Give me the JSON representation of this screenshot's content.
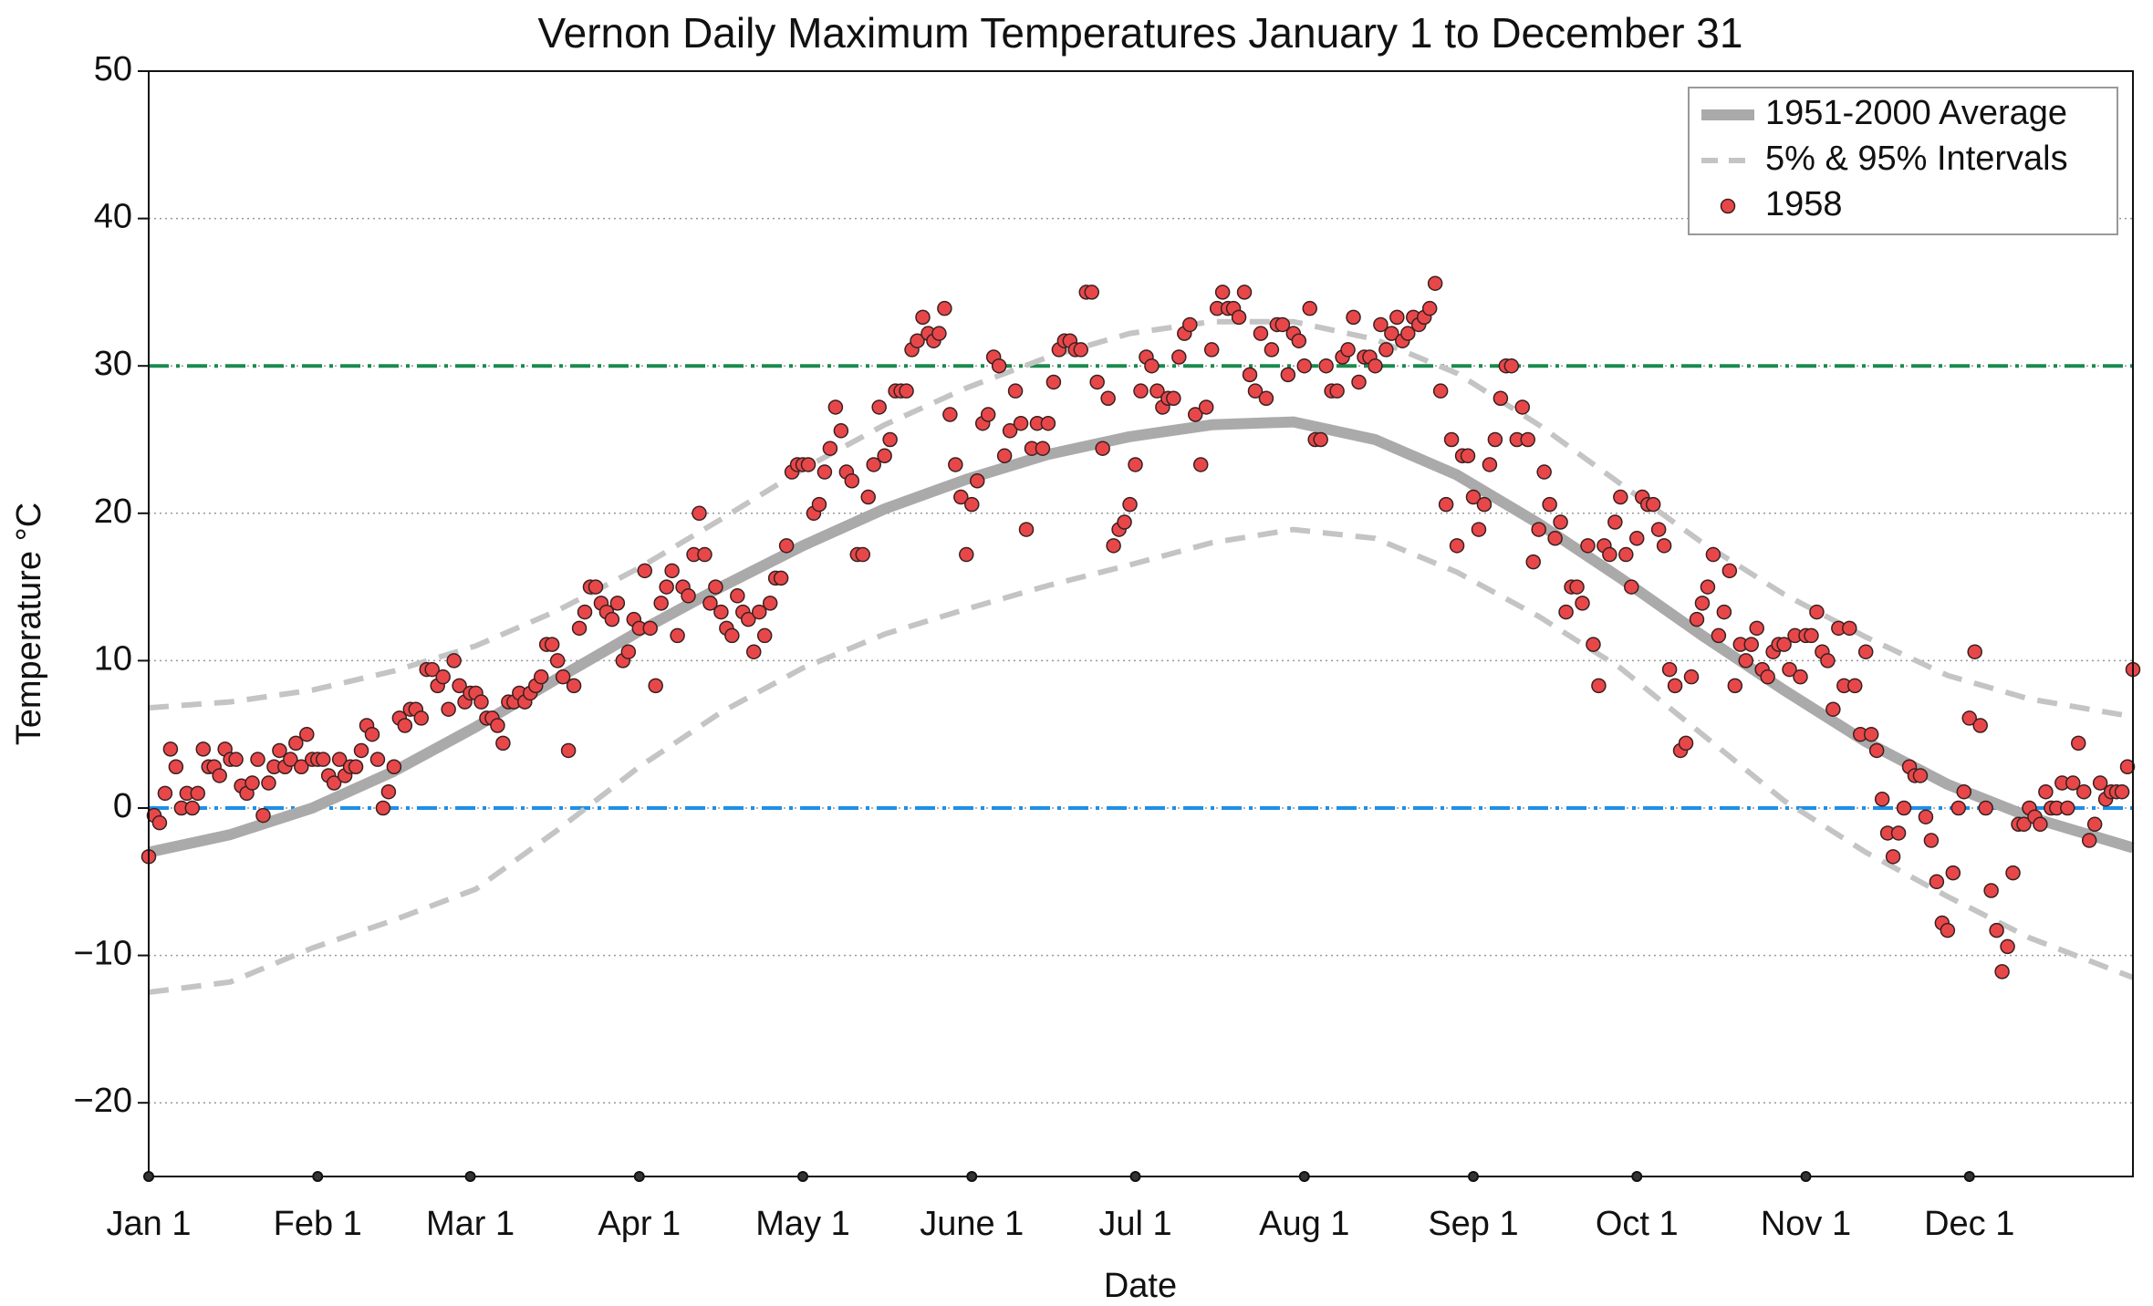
{
  "chart_data": {
    "type": "scatter",
    "title": "Vernon Daily Maximum Temperatures January 1 to December 31",
    "x_label": "Date",
    "y_label": "Temperature °C",
    "xlim": [
      0,
      364
    ],
    "ylim": [
      -25,
      50
    ],
    "xticks": [
      {
        "value": 0,
        "label": "Jan 1"
      },
      {
        "value": 31,
        "label": "Feb 1"
      },
      {
        "value": 59,
        "label": "Mar 1"
      },
      {
        "value": 90,
        "label": "Apr 1"
      },
      {
        "value": 120,
        "label": "May 1"
      },
      {
        "value": 151,
        "label": "June 1"
      },
      {
        "value": 181,
        "label": "Jul 1"
      },
      {
        "value": 212,
        "label": "Aug 1"
      },
      {
        "value": 243,
        "label": "Sep 1"
      },
      {
        "value": 273,
        "label": "Oct 1"
      },
      {
        "value": 304,
        "label": "Nov 1"
      },
      {
        "value": 334,
        "label": "Dec 1"
      }
    ],
    "yticks": [
      {
        "value": -20,
        "label": "−20"
      },
      {
        "value": -10,
        "label": "−10"
      },
      0,
      10,
      20,
      30,
      40,
      50
    ],
    "grid": true,
    "legend": "upper right",
    "reference_lines": [
      {
        "value": 30,
        "color": "#1a8a4f"
      },
      {
        "value": 0,
        "color": "#1f8fe5"
      }
    ],
    "series": [
      {
        "name": "1951-2000 Average",
        "type": "line",
        "color": "#aaaaaa",
        "x": [
          0,
          15,
          30,
          45,
          60,
          75,
          90,
          105,
          120,
          135,
          150,
          165,
          180,
          195,
          210,
          225,
          240,
          255,
          270,
          285,
          300,
          315,
          330,
          345,
          364
        ],
        "values": [
          -3.0,
          -1.8,
          0.0,
          2.5,
          5.5,
          8.8,
          12.0,
          15.0,
          17.8,
          20.3,
          22.3,
          24.0,
          25.2,
          26.0,
          26.2,
          25.0,
          22.6,
          19.3,
          15.6,
          11.7,
          8.0,
          4.5,
          1.6,
          -0.6,
          -2.7
        ]
      },
      {
        "name": "5% & 95% Intervals",
        "type": "band-lines",
        "color": "#c4c4c4",
        "x": [
          0,
          15,
          30,
          45,
          60,
          75,
          90,
          105,
          120,
          135,
          150,
          165,
          180,
          195,
          210,
          225,
          240,
          255,
          270,
          285,
          300,
          315,
          330,
          345,
          364
        ],
        "upper": [
          6.8,
          7.2,
          8.0,
          9.3,
          11.0,
          13.4,
          16.3,
          19.6,
          23.0,
          26.0,
          28.5,
          30.6,
          32.2,
          33.0,
          33.0,
          31.8,
          29.5,
          26.0,
          22.0,
          18.0,
          14.5,
          11.6,
          9.0,
          7.4,
          6.2
        ],
        "lower": [
          -12.5,
          -11.8,
          -9.5,
          -7.6,
          -5.5,
          -1.5,
          2.8,
          6.5,
          9.5,
          11.8,
          13.5,
          15.1,
          16.5,
          18.0,
          18.9,
          18.3,
          16.0,
          13.0,
          9.5,
          5.0,
          0.5,
          -3.0,
          -6.0,
          -8.8,
          -11.5
        ]
      },
      {
        "name": "1958",
        "type": "scatter",
        "color": "#e8474a",
        "x": [
          0,
          1,
          2,
          3,
          4,
          5,
          6,
          7,
          8,
          9,
          10,
          11,
          12,
          13,
          14,
          15,
          16,
          17,
          18,
          19,
          20,
          21,
          22,
          23,
          24,
          25,
          26,
          27,
          28,
          29,
          30,
          31,
          32,
          33,
          34,
          35,
          36,
          37,
          38,
          39,
          40,
          41,
          42,
          43,
          44,
          45,
          46,
          47,
          48,
          49,
          50,
          51,
          52,
          53,
          54,
          55,
          56,
          57,
          58,
          59,
          60,
          61,
          62,
          63,
          64,
          65,
          66,
          67,
          68,
          69,
          70,
          71,
          72,
          73,
          74,
          75,
          76,
          77,
          78,
          79,
          80,
          81,
          82,
          83,
          84,
          85,
          86,
          87,
          88,
          89,
          90,
          91,
          92,
          93,
          94,
          95,
          96,
          97,
          98,
          99,
          100,
          101,
          102,
          103,
          104,
          105,
          106,
          107,
          108,
          109,
          110,
          111,
          112,
          113,
          114,
          115,
          116,
          117,
          118,
          119,
          120,
          121,
          122,
          123,
          124,
          125,
          126,
          127,
          128,
          129,
          130,
          131,
          132,
          133,
          134,
          135,
          136,
          137,
          138,
          139,
          140,
          141,
          142,
          143,
          144,
          145,
          146,
          147,
          148,
          149,
          150,
          151,
          152,
          153,
          154,
          155,
          156,
          157,
          158,
          159,
          160,
          161,
          162,
          163,
          164,
          165,
          166,
          167,
          168,
          169,
          170,
          171,
          172,
          173,
          174,
          175,
          176,
          177,
          178,
          179,
          180,
          181,
          182,
          183,
          184,
          185,
          186,
          187,
          188,
          189,
          190,
          191,
          192,
          193,
          194,
          195,
          196,
          197,
          198,
          199,
          200,
          201,
          202,
          203,
          204,
          205,
          206,
          207,
          208,
          209,
          210,
          211,
          212,
          213,
          214,
          215,
          216,
          217,
          218,
          219,
          220,
          221,
          222,
          223,
          224,
          225,
          226,
          227,
          228,
          229,
          230,
          231,
          232,
          233,
          234,
          235,
          236,
          237,
          238,
          239,
          240,
          241,
          242,
          243,
          244,
          245,
          246,
          247,
          248,
          249,
          250,
          251,
          252,
          253,
          254,
          255,
          256,
          257,
          258,
          259,
          260,
          261,
          262,
          263,
          264,
          265,
          266,
          267,
          268,
          269,
          270,
          271,
          272,
          273,
          274,
          275,
          276,
          277,
          278,
          279,
          280,
          281,
          282,
          283,
          284,
          285,
          286,
          287,
          288,
          289,
          290,
          291,
          292,
          293,
          294,
          295,
          296,
          297,
          298,
          299,
          300,
          301,
          302,
          303,
          304,
          305,
          306,
          307,
          308,
          309,
          310,
          311,
          312,
          313,
          314,
          315,
          316,
          317,
          318,
          319,
          320,
          321,
          322,
          323,
          324,
          325,
          326,
          327,
          328,
          329,
          330,
          331,
          332,
          333,
          334,
          335,
          336,
          337,
          338,
          339,
          340,
          341,
          342,
          343,
          344,
          345,
          346,
          347,
          348,
          349,
          350,
          351,
          352,
          353,
          354,
          355,
          356,
          357,
          358,
          359,
          360,
          361,
          362,
          363,
          364
        ],
        "values": [
          -3.3,
          -0.5,
          -1,
          1,
          4,
          2.8,
          0,
          1,
          0,
          1,
          4,
          2.8,
          2.8,
          2.2,
          4,
          3.3,
          3.3,
          1.5,
          1,
          1.7,
          3.3,
          -0.5,
          1.7,
          2.8,
          3.9,
          2.8,
          3.3,
          4.4,
          2.8,
          5,
          3.3,
          3.3,
          3.3,
          2.2,
          1.7,
          3.3,
          2.2,
          2.8,
          2.8,
          3.9,
          5.6,
          5,
          3.3,
          0,
          1.1,
          2.8,
          6.1,
          5.6,
          6.7,
          6.7,
          6.1,
          9.4,
          9.4,
          8.3,
          8.9,
          6.7,
          10,
          8.3,
          7.2,
          7.8,
          7.8,
          7.2,
          6.1,
          6.1,
          5.6,
          4.4,
          7.2,
          7.2,
          7.8,
          7.2,
          7.8,
          8.3,
          8.9,
          11.1,
          11.1,
          10,
          8.9,
          3.9,
          8.3,
          12.2,
          13.3,
          15,
          15,
          13.9,
          13.3,
          12.8,
          13.9,
          10,
          10.6,
          12.8,
          12.2,
          16.1,
          12.2,
          8.3,
          13.9,
          15,
          16.1,
          11.7,
          15,
          14.4,
          17.2,
          20,
          17.2,
          13.9,
          15,
          13.3,
          12.2,
          11.7,
          14.4,
          13.3,
          12.8,
          10.6,
          13.3,
          11.7,
          13.9,
          15.6,
          15.6,
          17.8,
          22.8,
          23.3,
          23.3,
          23.3,
          20,
          20.6,
          22.8,
          24.4,
          27.2,
          25.6,
          22.8,
          22.2,
          17.2,
          17.2,
          21.1,
          23.3,
          27.2,
          23.9,
          25,
          28.3,
          28.3,
          28.3,
          31.1,
          31.7,
          33.3,
          32.2,
          31.7,
          32.2,
          33.9,
          26.7,
          23.3,
          21.1,
          17.2,
          20.6,
          22.2,
          26.1,
          26.7,
          30.6,
          30,
          23.9,
          25.6,
          28.3,
          26.1,
          18.9,
          24.4,
          26.1,
          24.4,
          26.1,
          28.9,
          31.1,
          31.7,
          31.7,
          31.1,
          31.1,
          35,
          35,
          28.9,
          24.4,
          27.8,
          17.8,
          18.9,
          19.4,
          20.6,
          23.3,
          28.3,
          30.6,
          30,
          28.3,
          27.2,
          27.8,
          27.8,
          30.6,
          32.2,
          32.8,
          26.7,
          23.3,
          27.2,
          31.1,
          33.9,
          35,
          33.9,
          33.9,
          33.3,
          35,
          29.4,
          28.3,
          32.2,
          27.8,
          31.1,
          32.8,
          32.8,
          29.4,
          32.2,
          31.7,
          30,
          33.9,
          25,
          25,
          30,
          28.3,
          28.3,
          30.6,
          31.1,
          33.3,
          28.9,
          30.6,
          30.6,
          30,
          32.8,
          31.1,
          32.2,
          33.3,
          31.7,
          32.2,
          33.3,
          32.8,
          33.3,
          33.9,
          35.6,
          28.3,
          20.6,
          25,
          17.8,
          23.9,
          23.9,
          21.1,
          18.9,
          20.6,
          23.3,
          25,
          27.8,
          30,
          30,
          25,
          27.2,
          25,
          16.7,
          18.9,
          22.8,
          20.6,
          18.3,
          19.4,
          13.3,
          15,
          15,
          13.9,
          17.8,
          11.1,
          8.3,
          17.8,
          17.2,
          19.4,
          21.1,
          17.2,
          15,
          18.3,
          21.1,
          20.6,
          20.6,
          18.9,
          17.8,
          9.4,
          8.3,
          3.9,
          4.4,
          8.9,
          12.8,
          13.9,
          15,
          17.2,
          11.7,
          13.3,
          16.1,
          8.3,
          11.1,
          10,
          11.1,
          12.2,
          9.4,
          8.9,
          10.6,
          11.1,
          11.1,
          9.4,
          11.7,
          8.9,
          11.7,
          11.7,
          13.3,
          10.6,
          10,
          6.7,
          12.2,
          8.3,
          12.2,
          8.3,
          5,
          10.6,
          5,
          3.9,
          0.6,
          -1.7,
          -3.3,
          -1.7,
          0,
          2.8,
          2.2,
          2.2,
          -0.6,
          -2.2,
          -5,
          -7.8,
          -8.3,
          -4.4,
          0,
          1.1,
          6.1,
          10.6,
          5.6,
          0,
          -5.6,
          -8.3,
          -11.1,
          -9.4,
          -4.4,
          -1.1,
          -1.1,
          0,
          -0.6,
          -1.1,
          1.1,
          0,
          0,
          1.7,
          0,
          1.7,
          4.4,
          1.1,
          -2.2,
          -1.1,
          1.7,
          0.6,
          1.1,
          1.1,
          1.1,
          2.8,
          9.4
        ]
      }
    ]
  }
}
